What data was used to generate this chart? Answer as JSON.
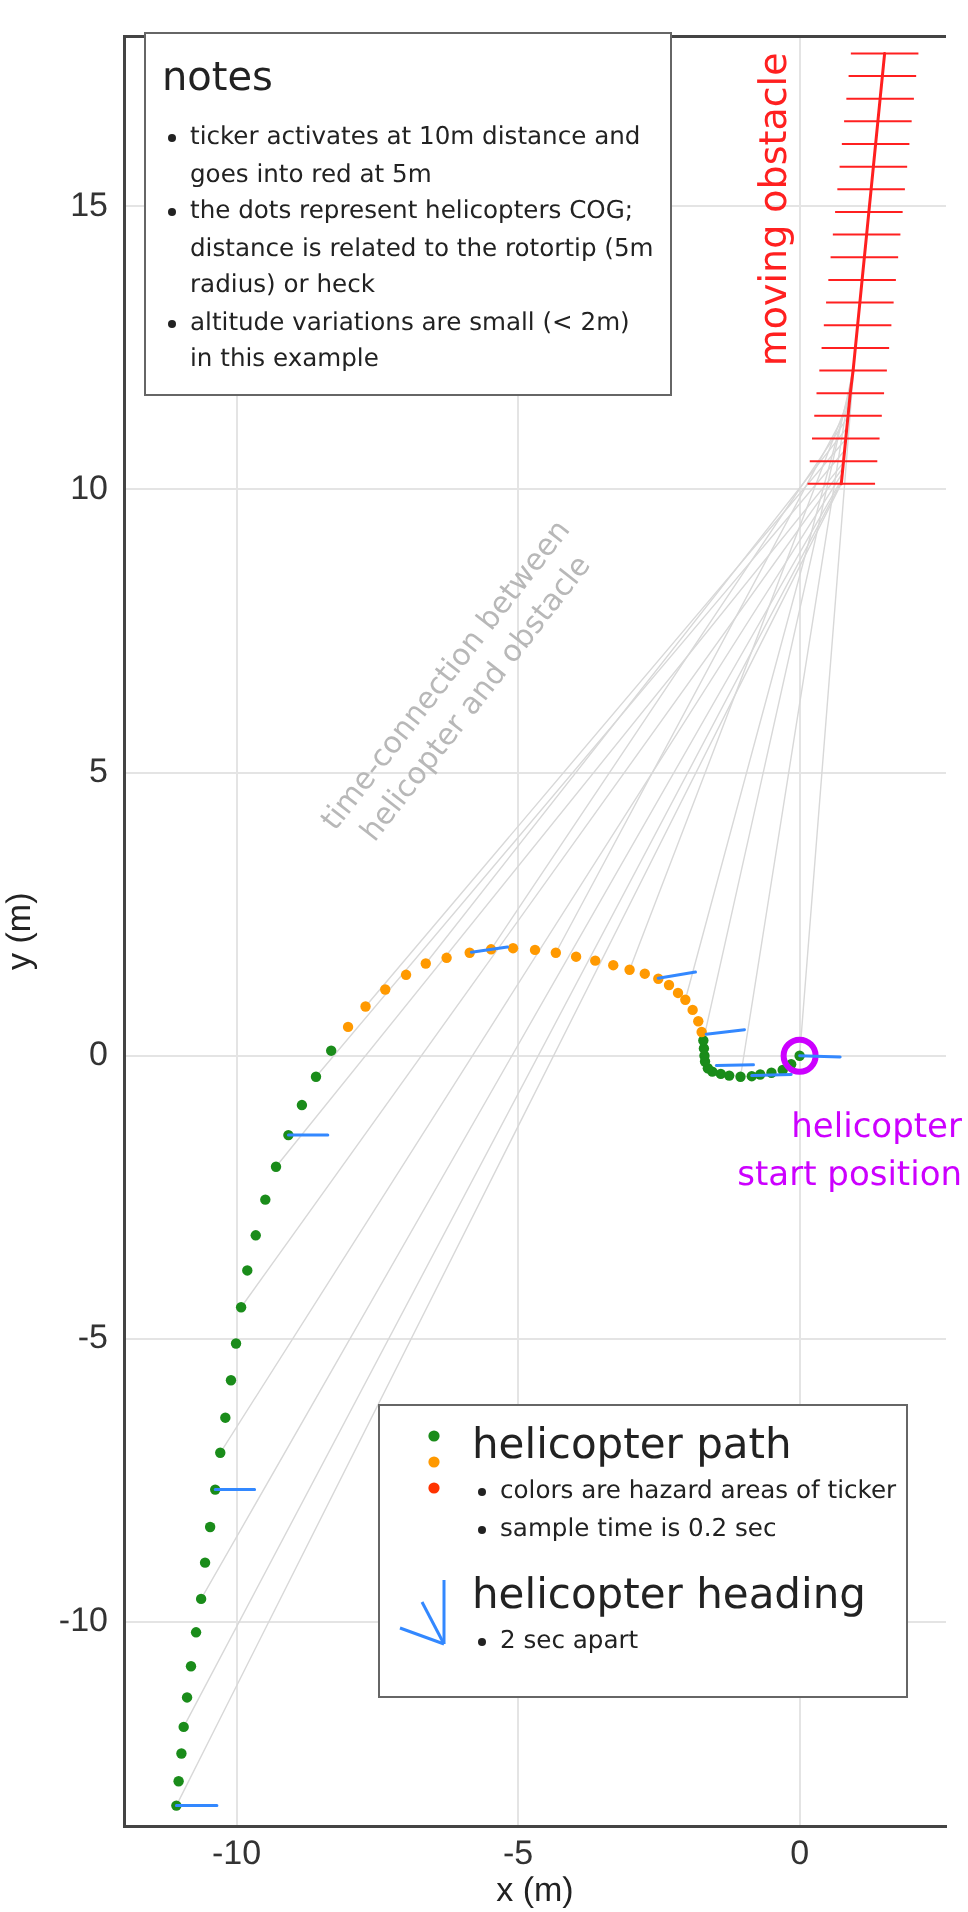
{
  "chart_data": {
    "type": "scatter",
    "xlabel": "x (m)",
    "ylabel": "y (m)",
    "xlim": [
      -12,
      2.6
    ],
    "ylim": [
      -13.6,
      18
    ],
    "xticks": [
      -10,
      -5,
      0
    ],
    "yticks": [
      -10,
      -5,
      0,
      5,
      10,
      15
    ],
    "grid": true,
    "legend": "bottom right",
    "annotations": [
      "notes",
      "ticker activates at 10m distance and goes into red at 5m",
      "the dots represent helicopters COG; distance is related to the rotortip (5m radius) or heck",
      "altitude variations are small (< 2m) in this example",
      "colors are hazard areas of ticker",
      "sample time is 0.2 sec",
      "2 sec apart"
    ],
    "series": [
      {
        "name": "helicopter path",
        "type": "scatter",
        "marker": "circle",
        "color": "#1a8c1a",
        "x": [
          0,
          -0.15,
          -0.3,
          -0.5,
          -0.7,
          -0.85,
          -1.05,
          -1.25,
          -1.4,
          -1.55,
          -1.63,
          -1.68,
          -1.69,
          -1.7,
          -1.71,
          -1.74,
          -1.8,
          -1.9,
          -2.03,
          -2.16,
          -2.32,
          -2.51,
          -2.75,
          -3.02,
          -3.31,
          -3.63,
          -3.97,
          -4.33,
          -4.7,
          -5.09,
          -5.48,
          -5.86,
          -6.27,
          -6.64,
          -6.99,
          -7.36,
          -7.71,
          -8.02,
          -8.32,
          -8.59,
          -8.84,
          -9.08,
          -9.3,
          -9.49,
          -9.66,
          -9.81,
          -9.92,
          -10.01,
          -10.1,
          -10.2,
          -10.29,
          -10.38,
          -10.47,
          -10.56,
          -10.63,
          -10.72,
          -10.81,
          -10.88,
          -10.94,
          -10.98,
          -11.03,
          -11.07
        ],
        "values": [
          0,
          -0.15,
          -0.25,
          -0.3,
          -0.33,
          -0.36,
          -0.37,
          -0.35,
          -0.32,
          -0.28,
          -0.22,
          -0.1,
          0,
          0.13,
          0.27,
          0.42,
          0.61,
          0.81,
          0.99,
          1.11,
          1.25,
          1.36,
          1.45,
          1.52,
          1.6,
          1.68,
          1.75,
          1.82,
          1.87,
          1.9,
          1.88,
          1.82,
          1.73,
          1.63,
          1.43,
          1.17,
          0.87,
          0.51,
          0.09,
          -0.37,
          -0.87,
          -1.4,
          -1.96,
          -2.54,
          -3.17,
          -3.79,
          -4.44,
          -5.08,
          -5.73,
          -6.39,
          -7.01,
          -7.66,
          -8.32,
          -8.95,
          -9.59,
          -10.18,
          -10.78,
          -11.33,
          -11.85,
          -12.32,
          -12.81,
          -13.24
        ],
        "colors": [
          "#1a8c1a",
          "#1a8c1a",
          "#1a8c1a",
          "#1a8c1a",
          "#1a8c1a",
          "#1a8c1a",
          "#1a8c1a",
          "#1a8c1a",
          "#1a8c1a",
          "#1a8c1a",
          "#1a8c1a",
          "#1a8c1a",
          "#1a8c1a",
          "#1a8c1a",
          "#1a8c1a",
          "#ff9900",
          "#ff9900",
          "#ff9900",
          "#ff9900",
          "#ff9900",
          "#ff9900",
          "#ff9900",
          "#ff9900",
          "#ff9900",
          "#ff9900",
          "#ff9900",
          "#ff9900",
          "#ff9900",
          "#ff9900",
          "#ff9900",
          "#ff9900",
          "#ff9900",
          "#ff9900",
          "#ff9900",
          "#ff9900",
          "#ff9900",
          "#ff9900",
          "#ff9900",
          "#1a8c1a",
          "#1a8c1a",
          "#1a8c1a",
          "#1a8c1a",
          "#1a8c1a",
          "#1a8c1a",
          "#1a8c1a",
          "#1a8c1a",
          "#1a8c1a",
          "#1a8c1a",
          "#1a8c1a",
          "#1a8c1a",
          "#1a8c1a",
          "#1a8c1a",
          "#1a8c1a",
          "#1a8c1a",
          "#1a8c1a",
          "#1a8c1a",
          "#1a8c1a",
          "#1a8c1a",
          "#1a8c1a",
          "#1a8c1a",
          "#1a8c1a",
          "#1a8c1a"
        ]
      },
      {
        "name": "helicopter heading",
        "type": "line",
        "marker": "none",
        "color": "#3388ff",
        "x": [
          0,
          0.72,
          null,
          -0.85,
          -0.15,
          null,
          -1.48,
          -0.82,
          null,
          -1.66,
          -0.98,
          null,
          -2.51,
          -1.85,
          null,
          -5.83,
          -5.19,
          null,
          -9.08,
          -8.38,
          null,
          -10.38,
          -9.68,
          null,
          -11.07,
          -10.35
        ],
        "values": [
          0,
          -0.02,
          null,
          -0.35,
          -0.33,
          null,
          -0.17,
          -0.16,
          null,
          0.38,
          0.46,
          null,
          1.37,
          1.48,
          null,
          1.83,
          1.92,
          null,
          -1.4,
          -1.4,
          null,
          -7.66,
          -7.66,
          null,
          -13.24,
          -13.24
        ]
      },
      {
        "name": "moving obstacle",
        "type": "line",
        "marker": "none",
        "color": "#ff2020",
        "x": [
          0.74,
          0.78,
          0.82,
          0.86,
          0.9,
          0.95,
          0.99,
          1.03,
          1.07,
          1.11,
          1.15,
          1.19,
          1.23,
          1.27,
          1.31,
          1.35,
          1.39,
          1.43,
          1.47,
          1.51
        ],
        "values": [
          10.1,
          10.5,
          10.9,
          11.3,
          11.7,
          12.1,
          12.5,
          12.9,
          13.3,
          13.7,
          14.1,
          14.5,
          14.9,
          15.3,
          15.7,
          16.1,
          16.5,
          16.9,
          17.3,
          17.7
        ],
        "xerrors": [
          0.6,
          0.6,
          0.6,
          0.6,
          0.6,
          0.6,
          0.6,
          0.6,
          0.6,
          0.6,
          0.6,
          0.6,
          0.6,
          0.6,
          0.6,
          0.6,
          0.6,
          0.6,
          0.6,
          0.6
        ]
      },
      {
        "name": "time-connection between helicopter and obstacle",
        "type": "line",
        "marker": "none",
        "color": "#d8d8d8",
        "x": [
          0,
          0.99
        ],
        "values": [
          0,
          12.5
        ]
      },
      {
        "name": "helicopter start position",
        "type": "scatter",
        "marker": "circle",
        "color": "#cc00ff",
        "x": [
          0
        ],
        "values": [
          0
        ]
      },
      {
        "type": "line",
        "marker": "none",
        "color": "#d8d8d8",
        "x": [
          -1.05,
          0.97
        ],
        "values": [
          -0.37,
          12.3
        ]
      },
      {
        "type": "line",
        "marker": "none",
        "color": "#d8d8d8",
        "x": [
          -1.71,
          0.95
        ],
        "values": [
          0.27,
          12.1
        ]
      },
      {
        "type": "line",
        "marker": "none",
        "color": "#d8d8d8",
        "x": [
          -2.03,
          0.93
        ],
        "values": [
          0.99,
          11.9
        ]
      },
      {
        "type": "line",
        "marker": "none",
        "color": "#d8d8d8",
        "x": [
          -3.02,
          0.91
        ],
        "values": [
          1.52,
          11.7
        ]
      },
      {
        "type": "line",
        "marker": "none",
        "color": "#d8d8d8",
        "x": [
          -4.33,
          0.89
        ],
        "values": [
          1.82,
          11.5
        ]
      },
      {
        "type": "line",
        "marker": "none",
        "color": "#d8d8d8",
        "x": [
          -5.48,
          0.87
        ],
        "values": [
          1.88,
          11.3
        ]
      },
      {
        "type": "line",
        "marker": "none",
        "color": "#d8d8d8",
        "x": [
          -6.64,
          0.85
        ],
        "values": [
          1.63,
          11.1
        ]
      },
      {
        "type": "line",
        "marker": "none",
        "color": "#d8d8d8",
        "x": [
          -7.71,
          0.83
        ],
        "values": [
          0.87,
          10.9
        ]
      },
      {
        "type": "line",
        "marker": "none",
        "color": "#d8d8d8",
        "x": [
          -8.59,
          0.81
        ],
        "values": [
          -0.37,
          10.7
        ]
      },
      {
        "type": "line",
        "marker": "none",
        "color": "#d8d8d8",
        "x": [
          -9.3,
          0.8
        ],
        "values": [
          -1.96,
          10.5
        ]
      },
      {
        "type": "line",
        "marker": "none",
        "color": "#d8d8d8",
        "x": [
          -9.92,
          0.78
        ],
        "values": [
          -4.44,
          10.4
        ]
      },
      {
        "type": "line",
        "marker": "none",
        "color": "#d8d8d8",
        "x": [
          -10.29,
          0.77
        ],
        "values": [
          -7.01,
          10.3
        ]
      },
      {
        "type": "line",
        "marker": "none",
        "color": "#d8d8d8",
        "x": [
          -10.63,
          0.76
        ],
        "values": [
          -9.59,
          10.2
        ]
      },
      {
        "type": "line",
        "marker": "none",
        "color": "#d8d8d8",
        "x": [
          -10.94,
          0.75
        ],
        "values": [
          -11.85,
          10.15
        ]
      },
      {
        "type": "line",
        "marker": "none",
        "color": "#d8d8d8",
        "x": [
          -11.07,
          0.74
        ],
        "values": [
          -13.24,
          10.1
        ]
      }
    ]
  }
}
